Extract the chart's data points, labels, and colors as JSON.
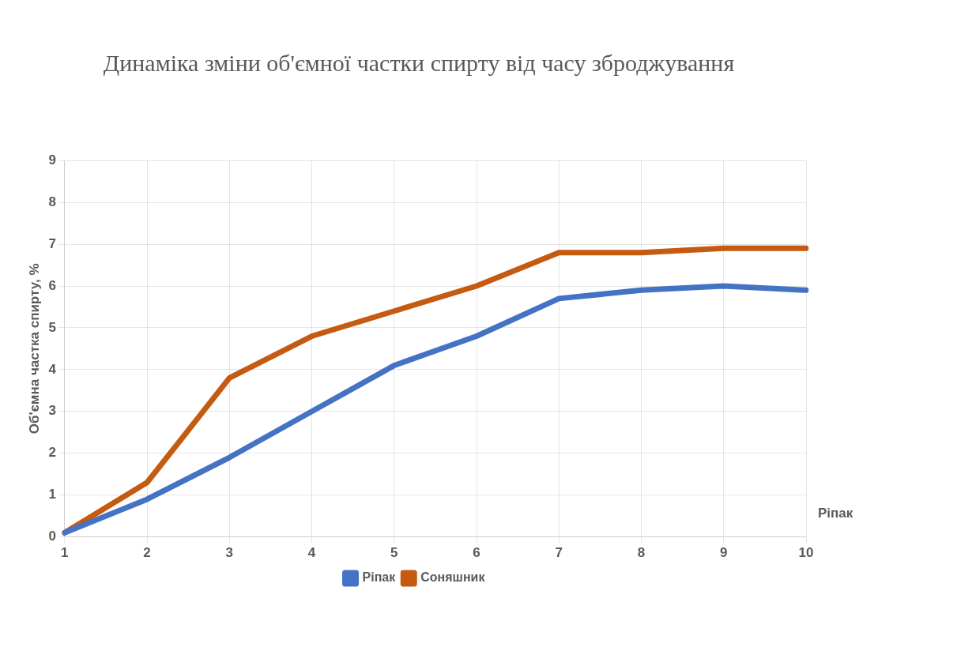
{
  "chart_data": {
    "type": "line",
    "title": "Динаміка зміни об'ємної частки спирту від часу зброджування",
    "ylabel": "Об'ємна частка спирту, %",
    "categories": [
      "1",
      "2",
      "3",
      "4",
      "5",
      "6",
      "7",
      "8",
      "9",
      "10"
    ],
    "series": [
      {
        "name": "Ріпак",
        "color": "#4472c4",
        "values": [
          0.1,
          0.9,
          1.9,
          3.0,
          4.1,
          4.8,
          5.7,
          5.9,
          6.0,
          5.9
        ]
      },
      {
        "name": "Соняшник",
        "color": "#c55a11",
        "values": [
          0.1,
          1.3,
          3.8,
          4.8,
          5.4,
          6.0,
          6.8,
          6.8,
          6.9,
          6.9
        ]
      }
    ],
    "ylim": [
      0,
      9
    ],
    "yticks": [
      0,
      1,
      2,
      3,
      4,
      5,
      6,
      7,
      8,
      9
    ],
    "grid": true,
    "legend": "bottom",
    "marker": "none",
    "line_style": "solid",
    "annotations": [
      "Ріпак"
    ]
  }
}
